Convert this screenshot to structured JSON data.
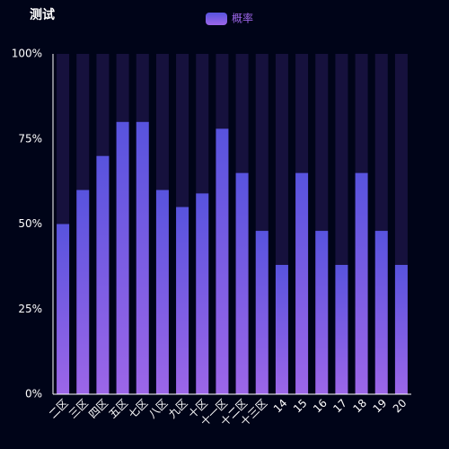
{
  "chart_data": {
    "type": "bar",
    "title": "测试",
    "categories": [
      "二区",
      "三区",
      "四区",
      "五区",
      "七区",
      "八区",
      "九区",
      "十区",
      "十一区",
      "十二区",
      "十三区",
      "14",
      "15",
      "16",
      "17",
      "18",
      "19",
      "20"
    ],
    "series": [
      {
        "name": "概率",
        "color": [
          "#5853de",
          "#9c66e8"
        ],
        "values": [
          50,
          60,
          70,
          80,
          80,
          60,
          55,
          59,
          78,
          65,
          48,
          38,
          65,
          48,
          38,
          65,
          48,
          38
        ]
      }
    ],
    "background_bar_color": "#16113d",
    "ylim": [
      0,
      100
    ],
    "yticks": [
      {
        "value": 0,
        "label": "0%"
      },
      {
        "value": 25,
        "label": "25%"
      },
      {
        "value": 50,
        "label": "50%"
      },
      {
        "value": 75,
        "label": "75%"
      },
      {
        "value": 100,
        "label": "100%"
      }
    ],
    "legend": "top"
  }
}
